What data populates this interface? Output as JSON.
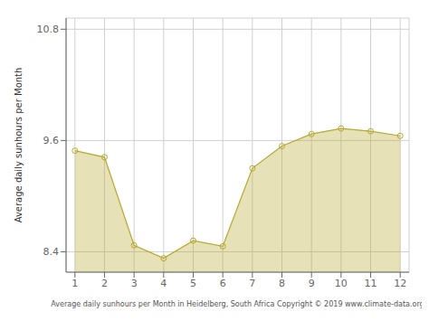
{
  "chart_data": {
    "type": "area",
    "x": [
      1,
      2,
      3,
      4,
      5,
      6,
      7,
      8,
      9,
      10,
      11,
      12
    ],
    "values": [
      9.49,
      9.42,
      8.47,
      8.33,
      8.52,
      8.46,
      9.3,
      9.54,
      9.67,
      9.73,
      9.7,
      9.65
    ],
    "color": "#b8a830",
    "marker": "circle",
    "xlim": [
      0.7,
      12.3
    ],
    "ylim": [
      8.18,
      10.92
    ],
    "xticks": [
      1,
      2,
      3,
      4,
      5,
      6,
      7,
      8,
      9,
      10,
      11,
      12
    ],
    "yticks": [
      8.4,
      9.6,
      10.8
    ],
    "grid": true,
    "xlabel": "Average daily sunhours per Month in Heidelberg, South Africa Copyright © 2019 www.climate-data.org",
    "ylabel": "Average daily sunhours per Month"
  }
}
